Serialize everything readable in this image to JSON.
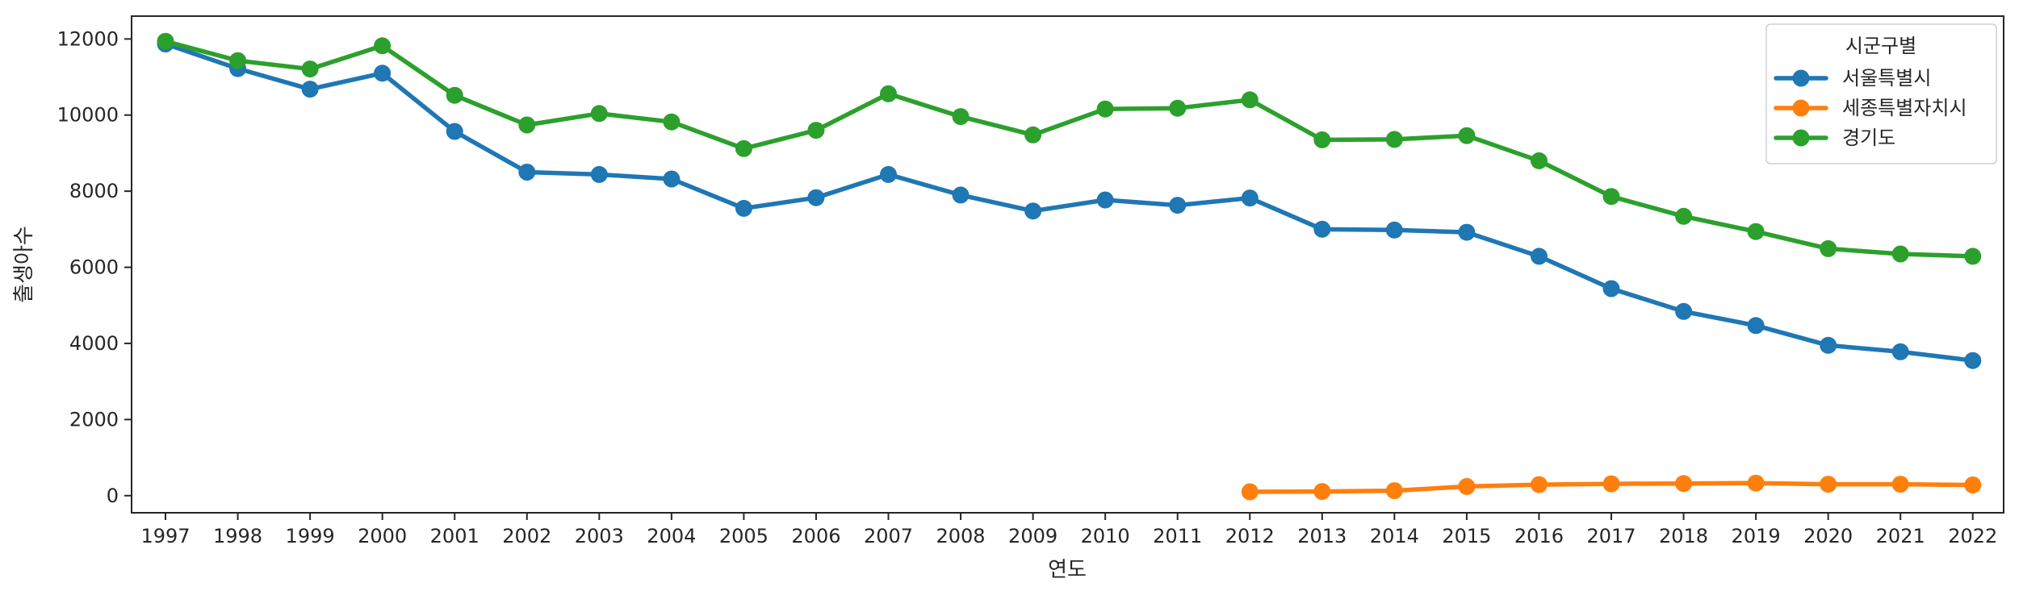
{
  "chart_data": {
    "type": "line",
    "xlabel": "연도",
    "ylabel": "출생아수",
    "x": [
      "1997",
      "1998",
      "1999",
      "2000",
      "2001",
      "2002",
      "2003",
      "2004",
      "2005",
      "2006",
      "2007",
      "2008",
      "2009",
      "2010",
      "2011",
      "2012",
      "2013",
      "2014",
      "2015",
      "2016",
      "2017",
      "2018",
      "2019",
      "2020",
      "2021",
      "2022"
    ],
    "y_ticks": [
      "0",
      "2000",
      "4000",
      "6000",
      "8000",
      "10000",
      "12000"
    ],
    "ylim": [
      -450,
      12600
    ],
    "grid": false,
    "legend": {
      "title": "시군구별",
      "position": "top-right"
    },
    "series": [
      {
        "name": "서울특별시",
        "color": "#1f77b4",
        "values": [
          11870,
          11220,
          10680,
          11100,
          9570,
          8500,
          8440,
          8320,
          7550,
          7830,
          8440,
          7900,
          7480,
          7770,
          7630,
          7820,
          7000,
          6980,
          6920,
          6290,
          5440,
          4840,
          4470,
          3950,
          3780,
          3550
        ]
      },
      {
        "name": "세종특별자치시",
        "color": "#ff7f0e",
        "values": [
          null,
          null,
          null,
          null,
          null,
          null,
          null,
          null,
          null,
          null,
          null,
          null,
          null,
          null,
          null,
          100,
          110,
          130,
          240,
          290,
          310,
          320,
          330,
          300,
          300,
          280
        ]
      },
      {
        "name": "경기도",
        "color": "#2ca02c",
        "values": [
          11940,
          11430,
          11210,
          11820,
          10520,
          9740,
          10040,
          9820,
          9120,
          9600,
          10560,
          9960,
          9480,
          10160,
          10180,
          10400,
          9350,
          9360,
          9460,
          8800,
          7860,
          7340,
          6940,
          6490,
          6350,
          6290
        ]
      }
    ]
  }
}
